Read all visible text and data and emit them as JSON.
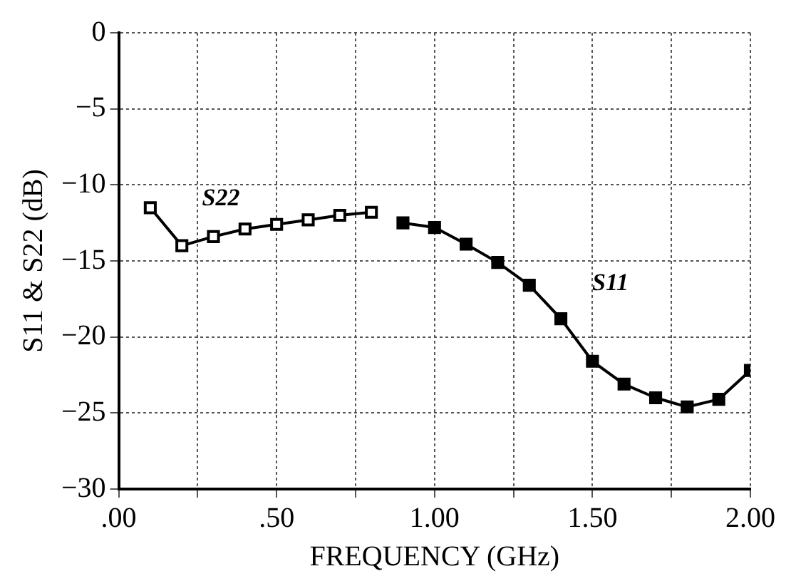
{
  "chart_data": {
    "type": "line",
    "xlabel": "FREQUENCY (GHz)",
    "ylabel": "S11 & S22 (dB)",
    "xlim": [
      0,
      2
    ],
    "xticks": [
      {
        "value": 0,
        "label": ".00"
      },
      {
        "value": 0.25,
        "label": null
      },
      {
        "value": 0.5,
        "label": ".50"
      },
      {
        "value": 0.75,
        "label": null
      },
      {
        "value": 1,
        "label": "1.00"
      },
      {
        "value": 1.25,
        "label": null
      },
      {
        "value": 1.5,
        "label": "1.50"
      },
      {
        "value": 1.75,
        "label": null
      },
      {
        "value": 2,
        "label": "2.00"
      }
    ],
    "ylim": [
      -30,
      0
    ],
    "yticks": [
      -30,
      -25,
      -20,
      -15,
      -10,
      -5,
      0
    ],
    "grid": true,
    "legend": false,
    "marker": "square",
    "line_style": "solid",
    "series": [
      {
        "name": "S22",
        "color": "#000000",
        "x": [
          0.1,
          0.2,
          0.3,
          0.4,
          0.5,
          0.6,
          0.7,
          0.8
        ],
        "values": [
          -11.5,
          -14,
          -13.4,
          -12.9,
          -12.6,
          -12.3,
          -12.0,
          -11.8
        ]
      },
      {
        "name": "S11",
        "color": "#000000",
        "x": [
          0.9,
          1.0,
          1.1,
          1.2,
          1.3,
          1.4,
          1.5,
          1.6,
          1.7,
          1.8,
          1.9,
          2.0
        ],
        "values": [
          -12.5,
          -12.8,
          -13.9,
          -15.1,
          -16.6,
          -18.8,
          -21.6,
          -23.1,
          -24.0,
          -24.6,
          -24.1,
          -22.2
        ]
      }
    ]
  }
}
